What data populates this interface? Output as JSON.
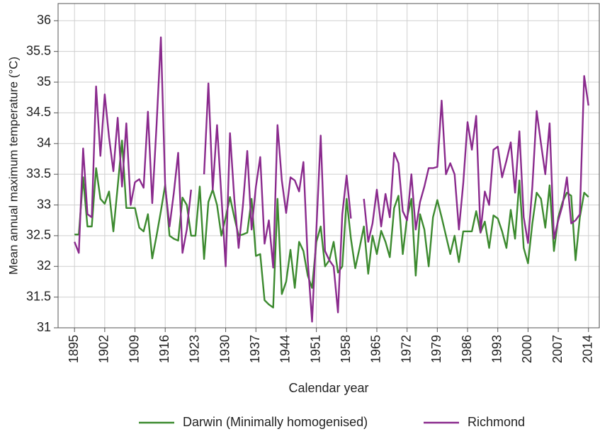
{
  "chart_data": {
    "type": "line",
    "x_label": "Calendar year",
    "y_label": "Mean annual maximum temperature (°C)",
    "x": [
      1895,
      1896,
      1897,
      1898,
      1899,
      1900,
      1901,
      1902,
      1903,
      1904,
      1905,
      1906,
      1907,
      1908,
      1909,
      1910,
      1911,
      1912,
      1913,
      1914,
      1915,
      1916,
      1917,
      1918,
      1919,
      1920,
      1921,
      1922,
      1923,
      1924,
      1925,
      1926,
      1927,
      1928,
      1929,
      1930,
      1931,
      1932,
      1933,
      1934,
      1935,
      1936,
      1937,
      1938,
      1939,
      1940,
      1941,
      1942,
      1943,
      1944,
      1945,
      1946,
      1947,
      1948,
      1949,
      1950,
      1951,
      1952,
      1953,
      1954,
      1955,
      1956,
      1957,
      1958,
      1959,
      1960,
      1961,
      1962,
      1963,
      1964,
      1965,
      1966,
      1967,
      1968,
      1969,
      1970,
      1971,
      1972,
      1973,
      1974,
      1975,
      1976,
      1977,
      1978,
      1979,
      1980,
      1981,
      1982,
      1983,
      1984,
      1985,
      1986,
      1987,
      1988,
      1989,
      1990,
      1991,
      1992,
      1993,
      1994,
      1995,
      1996,
      1997,
      1998,
      1999,
      2000,
      2001,
      2002,
      2003,
      2004,
      2005,
      2006,
      2007,
      2008,
      2009,
      2010,
      2011,
      2012,
      2013,
      2014
    ],
    "series": [
      {
        "name": "Darwin (Minimally homogenised)",
        "color": "#3c8a2f",
        "values": [
          32.52,
          32.52,
          33.45,
          32.65,
          32.65,
          33.6,
          33.1,
          33.02,
          33.22,
          32.57,
          33.3,
          34.05,
          32.95,
          32.95,
          32.95,
          32.63,
          32.57,
          32.85,
          32.13,
          32.5,
          32.9,
          33.33,
          32.5,
          32.45,
          32.42,
          33.12,
          33.0,
          32.5,
          32.5,
          33.3,
          32.12,
          33.05,
          33.25,
          33.0,
          32.5,
          32.8,
          33.13,
          32.8,
          32.5,
          32.52,
          32.55,
          33.1,
          32.17,
          32.2,
          31.45,
          31.38,
          31.33,
          33.1,
          31.55,
          31.75,
          32.27,
          31.65,
          32.4,
          32.25,
          31.85,
          31.65,
          32.4,
          32.65,
          32.0,
          32.1,
          32.4,
          31.9,
          32.0,
          33.1,
          32.45,
          31.97,
          32.3,
          32.65,
          31.88,
          32.5,
          32.2,
          32.58,
          32.4,
          32.15,
          32.95,
          33.15,
          32.2,
          32.8,
          33.1,
          31.85,
          32.85,
          32.6,
          32.0,
          32.8,
          33.08,
          32.8,
          32.5,
          32.2,
          32.5,
          32.07,
          32.57,
          32.57,
          32.57,
          32.9,
          32.55,
          32.73,
          32.3,
          32.83,
          32.78,
          32.57,
          32.3,
          32.92,
          32.45,
          33.4,
          32.3,
          32.05,
          32.7,
          33.2,
          33.1,
          32.63,
          33.32,
          32.25,
          32.8,
          33.05,
          33.2,
          33.15,
          32.1,
          32.8,
          33.2,
          33.13
        ]
      },
      {
        "name": "Richmond",
        "color": "#8a2a8d",
        "values": [
          32.4,
          32.22,
          33.92,
          32.85,
          32.8,
          34.93,
          33.8,
          34.8,
          34.1,
          33.55,
          34.42,
          33.3,
          34.33,
          33.0,
          33.37,
          33.42,
          33.28,
          34.52,
          33.03,
          34.3,
          35.73,
          33.3,
          32.65,
          33.2,
          33.85,
          32.22,
          32.6,
          33.25,
          null,
          null,
          33.5,
          34.98,
          33.25,
          34.3,
          33.15,
          32.0,
          34.17,
          33.1,
          32.3,
          33.0,
          33.88,
          32.6,
          33.3,
          33.78,
          32.37,
          32.75,
          31.98,
          34.3,
          33.4,
          32.87,
          33.45,
          33.4,
          33.22,
          33.7,
          32.1,
          31.1,
          32.6,
          34.13,
          32.25,
          32.1,
          32.0,
          31.25,
          32.85,
          33.48,
          32.78,
          null,
          null,
          33.1,
          32.4,
          32.7,
          33.25,
          32.65,
          33.18,
          32.8,
          33.85,
          33.68,
          32.9,
          32.75,
          33.5,
          32.6,
          33.05,
          33.3,
          33.6,
          33.6,
          33.62,
          34.7,
          33.5,
          33.68,
          33.5,
          32.6,
          33.35,
          34.35,
          33.9,
          34.45,
          32.55,
          33.22,
          33.0,
          33.9,
          33.95,
          33.45,
          33.72,
          34.02,
          33.2,
          34.2,
          32.8,
          32.38,
          33.3,
          34.53,
          34.0,
          33.5,
          34.33,
          32.45,
          32.75,
          33.0,
          33.45,
          32.7,
          32.75,
          32.85,
          35.1,
          34.62
        ]
      }
    ],
    "xlim": [
      1891.2,
      2016.5
    ],
    "ylim": [
      31,
      36.28
    ],
    "xticks": [
      1895,
      1902,
      1909,
      1916,
      1923,
      1930,
      1937,
      1944,
      1951,
      1958,
      1965,
      1972,
      1979,
      1986,
      1993,
      2000,
      2007,
      2014
    ],
    "yticks": [
      31,
      31.5,
      32,
      32.5,
      33,
      33.5,
      34,
      34.5,
      35,
      35.5,
      36
    ],
    "grid": true,
    "legend": "bottom"
  }
}
